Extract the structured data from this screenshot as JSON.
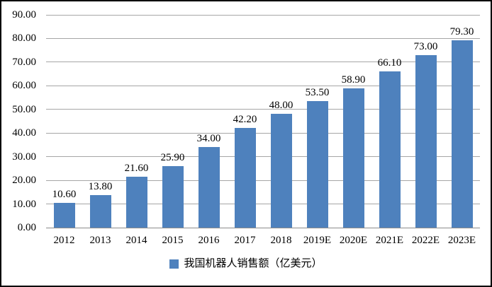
{
  "chart_data": {
    "type": "bar",
    "title": "",
    "categories": [
      "2012",
      "2013",
      "2014",
      "2015",
      "2016",
      "2017",
      "2018",
      "2019E",
      "2020E",
      "2021E",
      "2022E",
      "2023E"
    ],
    "values": [
      10.6,
      13.8,
      21.6,
      25.9,
      34.0,
      42.2,
      48.0,
      53.5,
      58.9,
      66.1,
      73.0,
      79.3
    ],
    "value_labels": [
      "10.60",
      "13.80",
      "21.60",
      "25.90",
      "34.00",
      "42.20",
      "48.00",
      "53.50",
      "58.90",
      "66.10",
      "73.00",
      "79.30"
    ],
    "series_name": "我国机器人销售额（亿美元）",
    "ylim": [
      0,
      90
    ],
    "ytick_step": 10,
    "yticks": [
      "0.00",
      "10.00",
      "20.00",
      "30.00",
      "40.00",
      "50.00",
      "60.00",
      "70.00",
      "80.00",
      "90.00"
    ],
    "xlabel": "",
    "ylabel": "",
    "grid": true,
    "legend_position": "bottom",
    "bar_color": "#4E81BD",
    "gridline_color": "#A6A6A6",
    "axis_line_color": "#8C8C8C",
    "border_color": "#000000",
    "background_color": "#FFFFFF"
  }
}
